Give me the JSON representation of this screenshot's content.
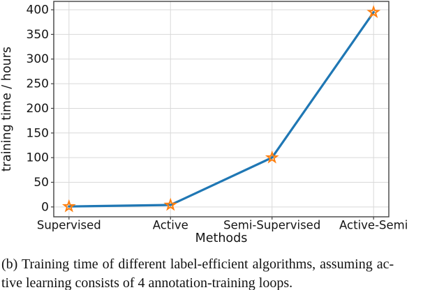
{
  "figure": {
    "caption_line1": "(b) Training time of different label-efficient algorithms, assuming ac-",
    "caption_line2": "tive learning consists of 4 annotation-training loops."
  },
  "chart_data": {
    "type": "line",
    "title": "",
    "xlabel": "Methods",
    "ylabel": "training time / hours",
    "categories": [
      "Supervised",
      "Active",
      "Semi-Supervised",
      "Active-Semi"
    ],
    "values": [
      1,
      4,
      100,
      395
    ],
    "yticks": [
      0,
      50,
      100,
      150,
      200,
      250,
      300,
      350,
      400
    ],
    "ylim": [
      -20,
      417
    ],
    "grid": true,
    "legend": "none",
    "line_color": "#1f77b4",
    "marker": "star-icon",
    "marker_color": "#ff7f0e",
    "grid_color": "#d9d9d9",
    "frame_color": "#424242",
    "text_color": "#141414"
  }
}
